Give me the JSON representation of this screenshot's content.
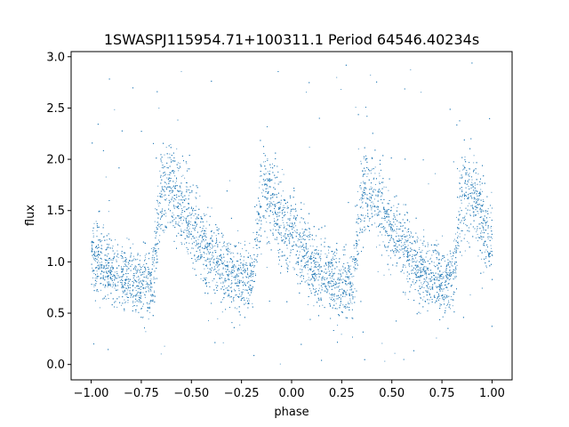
{
  "chart_data": {
    "type": "scatter",
    "title": "1SWASPJ115954.71+100311.1 Period 64546.40234s",
    "xlabel": "phase",
    "ylabel": "flux",
    "xlim": [
      -1.1,
      1.1
    ],
    "ylim": [
      -0.15,
      3.05
    ],
    "xticks": [
      -1.0,
      -0.75,
      -0.5,
      -0.25,
      0.0,
      0.25,
      0.5,
      0.75,
      1.0
    ],
    "xtick_labels": [
      "−1.00",
      "−0.75",
      "−0.50",
      "−0.25",
      "0.00",
      "0.25",
      "0.50",
      "0.75",
      "1.00"
    ],
    "yticks": [
      0.0,
      0.5,
      1.0,
      1.5,
      2.0,
      2.5,
      3.0
    ],
    "ytick_labels": [
      "0.0",
      "0.5",
      "1.0",
      "1.5",
      "2.0",
      "2.5",
      "3.0"
    ],
    "grid": false,
    "point_color": "#1f77b4",
    "light_curve_trend": {
      "phase": [
        -1.0,
        -0.9,
        -0.8,
        -0.7,
        -0.65,
        -0.6,
        -0.5,
        -0.4,
        -0.3,
        -0.2,
        -0.15,
        -0.1,
        0.0,
        0.1,
        0.2,
        0.3,
        0.35,
        0.4,
        0.5,
        0.6,
        0.7,
        0.8,
        0.85,
        0.9,
        1.0
      ],
      "flux": [
        1.05,
        0.92,
        0.82,
        0.78,
        1.7,
        1.75,
        1.35,
        1.05,
        0.88,
        0.8,
        1.72,
        1.62,
        1.22,
        0.95,
        0.82,
        0.78,
        1.72,
        1.68,
        1.3,
        1.02,
        0.84,
        0.8,
        1.72,
        1.65,
        1.15
      ]
    }
  }
}
